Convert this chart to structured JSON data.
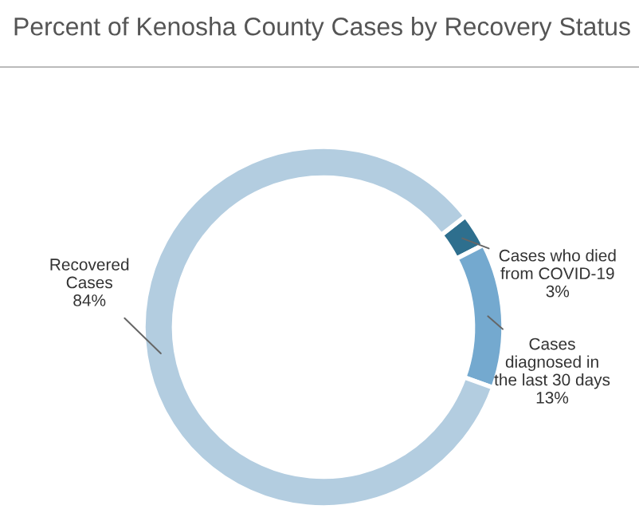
{
  "chart_data": {
    "type": "donut",
    "title": "Percent of Kenosha County Cases by Recovery Status",
    "categories": [
      "Cases who died\nfrom COVID-19",
      "Cases\ndiagnosed in\nthe last 30 days",
      "Recovered\nCases"
    ],
    "values": [
      3,
      13,
      84
    ],
    "colors": [
      "#2e6f8e",
      "#74a9cf",
      "#b3cde0"
    ],
    "value_labels": [
      "3%",
      "13%",
      "84%"
    ],
    "legend": false
  }
}
